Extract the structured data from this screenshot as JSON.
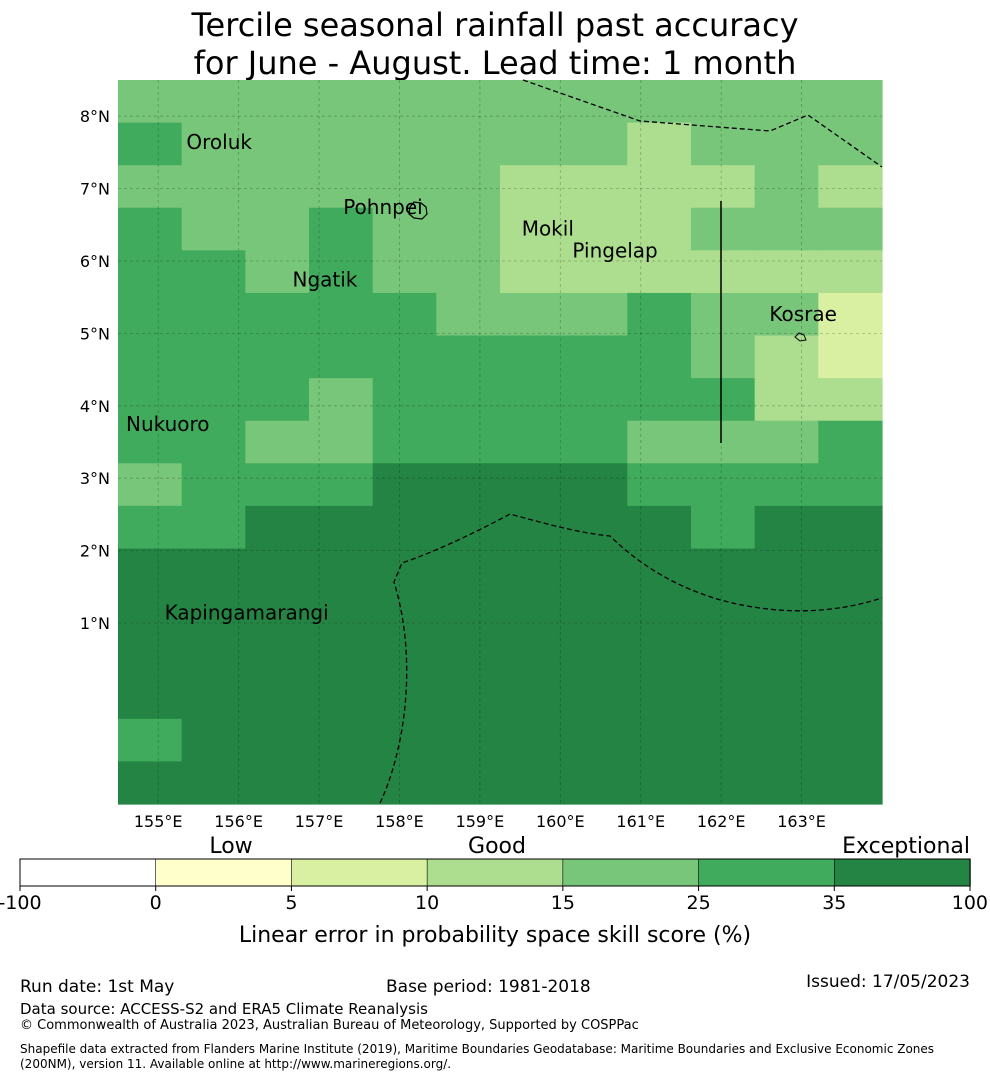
{
  "title": {
    "line1": "Tercile seasonal rainfall past accuracy",
    "line2": "for June - August. Lead time: 1 month"
  },
  "map": {
    "lon_range": [
      154.5,
      164.0
    ],
    "lat_range": [
      -1.5,
      8.5
    ],
    "lon_ticks": [
      {
        "v": 155,
        "label": "155°E"
      },
      {
        "v": 156,
        "label": "156°E"
      },
      {
        "v": 157,
        "label": "157°E"
      },
      {
        "v": 158,
        "label": "158°E"
      },
      {
        "v": 159,
        "label": "159°E"
      },
      {
        "v": 160,
        "label": "160°E"
      },
      {
        "v": 161,
        "label": "161°E"
      },
      {
        "v": 162,
        "label": "162°E"
      },
      {
        "v": 163,
        "label": "163°E"
      }
    ],
    "lat_ticks": [
      {
        "v": 1,
        "label": "1°N"
      },
      {
        "v": 2,
        "label": "2°N"
      },
      {
        "v": 3,
        "label": "3°N"
      },
      {
        "v": 4,
        "label": "4°N"
      },
      {
        "v": 5,
        "label": "5°N"
      },
      {
        "v": 6,
        "label": "6°N"
      },
      {
        "v": 7,
        "label": "7°N"
      },
      {
        "v": 8,
        "label": "8°N"
      }
    ],
    "grid_rows_note": "skill class per cell, rows north to south, cols west to east (0.833 deg cells)",
    "skill_grid": [
      [
        4,
        4,
        4,
        4,
        4,
        4,
        4,
        4,
        4,
        4,
        4,
        4
      ],
      [
        5,
        4,
        4,
        4,
        4,
        4,
        4,
        4,
        3,
        4,
        4,
        4
      ],
      [
        4,
        4,
        4,
        4,
        4,
        4,
        3,
        3,
        3,
        3,
        4,
        3
      ],
      [
        5,
        4,
        4,
        5,
        4,
        4,
        3,
        3,
        3,
        4,
        4,
        4
      ],
      [
        5,
        5,
        4,
        5,
        4,
        4,
        3,
        3,
        3,
        3,
        3,
        3
      ],
      [
        5,
        5,
        5,
        5,
        5,
        4,
        4,
        4,
        5,
        4,
        4,
        2
      ],
      [
        5,
        5,
        5,
        5,
        5,
        5,
        5,
        5,
        5,
        4,
        3,
        2
      ],
      [
        5,
        5,
        5,
        4,
        5,
        5,
        5,
        5,
        5,
        5,
        3,
        3
      ],
      [
        5,
        5,
        4,
        4,
        5,
        5,
        5,
        5,
        4,
        4,
        4,
        5
      ],
      [
        4,
        5,
        5,
        5,
        6,
        6,
        6,
        6,
        5,
        5,
        5,
        5
      ],
      [
        5,
        5,
        6,
        6,
        6,
        6,
        6,
        6,
        6,
        5,
        6,
        6
      ],
      [
        6,
        6,
        6,
        6,
        6,
        6,
        6,
        6,
        6,
        6,
        6,
        6
      ],
      [
        6,
        6,
        6,
        6,
        6,
        6,
        6,
        6,
        6,
        6,
        6,
        6
      ],
      [
        6,
        6,
        6,
        6,
        6,
        6,
        6,
        6,
        6,
        6,
        6,
        6
      ],
      [
        6,
        6,
        6,
        6,
        6,
        6,
        6,
        6,
        6,
        6,
        6,
        6
      ],
      [
        5,
        6,
        6,
        6,
        6,
        6,
        6,
        6,
        6,
        6,
        6,
        6
      ],
      [
        6,
        6,
        6,
        6,
        6,
        6,
        6,
        6,
        6,
        6,
        6,
        6
      ]
    ],
    "place_labels": [
      {
        "name": "Oroluk",
        "lon": 155.35,
        "lat": 7.55
      },
      {
        "name": "Pohnpei",
        "lon": 157.3,
        "lat": 6.65
      },
      {
        "name": "Mokil",
        "lon": 159.52,
        "lat": 6.35
      },
      {
        "name": "Pingelap",
        "lon": 160.15,
        "lat": 6.05
      },
      {
        "name": "Ngatik",
        "lon": 156.67,
        "lat": 5.65
      },
      {
        "name": "Kosrae",
        "lon": 162.6,
        "lat": 5.17
      },
      {
        "name": "Nukuoro",
        "lon": 154.6,
        "lat": 3.65
      },
      {
        "name": "Kapingamarangi",
        "lon": 155.08,
        "lat": 1.05
      }
    ]
  },
  "colorbar": {
    "colors": [
      "#ffffff",
      "#ffffcc",
      "#d9f0a3",
      "#addd8e",
      "#78c679",
      "#41ab5d",
      "#238443"
    ],
    "tick_labels": [
      "-100",
      "0",
      "5",
      "10",
      "15",
      "25",
      "35",
      "100"
    ],
    "category_labels": [
      "Low",
      "Good",
      "Exceptional"
    ],
    "axis_label": "Linear error in probability space skill score (%)"
  },
  "footer": {
    "run_date": "Run date: 1st May",
    "base_period": "Base period: 1981-2018",
    "issued": "Issued: 17/05/2023",
    "data_source": "Data source: ACCESS-S2 and ERA5 Climate Reanalysis",
    "copyright": "© Commonwealth of Australia 2023, Australian Bureau of Meteorology, Supported by COSPPac",
    "shapefile_line1": "Shapefile data extracted from Flanders Marine Institute (2019), Maritime Boundaries Geodatabase: Maritime Boundaries and Exclusive Economic Zones",
    "shapefile_line2": "(200NM), version 11. Available online at http://www.marineregions.org/."
  }
}
